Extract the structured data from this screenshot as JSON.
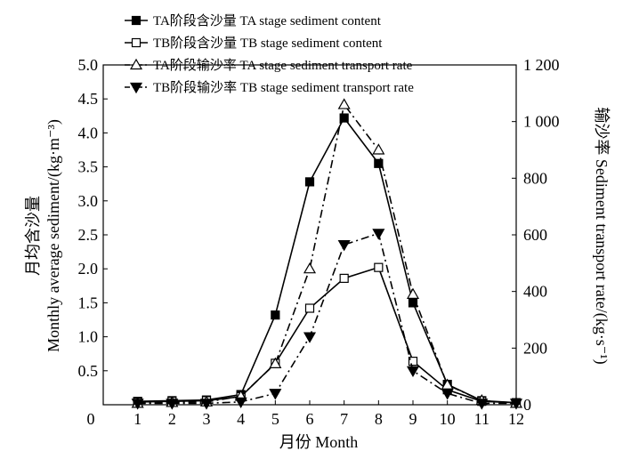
{
  "chart_data": {
    "type": "line",
    "x": [
      1,
      2,
      3,
      4,
      5,
      6,
      7,
      8,
      9,
      10,
      11,
      12
    ],
    "xlabel": "月份 Month",
    "xlim": [
      0,
      12
    ],
    "xticks": [
      "0",
      "1",
      "2",
      "3",
      "4",
      "5",
      "6",
      "7",
      "8",
      "9",
      "10",
      "11",
      "12"
    ],
    "ylabel_left_line1": "月均含沙量",
    "ylabel_left_line2": "Monthly average sediment/(kg·m⁻³)",
    "ylim_left": [
      0,
      5.0
    ],
    "yticks_left": [
      "0.5",
      "1.0",
      "1.5",
      "2.0",
      "2.5",
      "3.0",
      "3.5",
      "4.0",
      "4.5",
      "5.0"
    ],
    "ylabel_right": "输沙率 Sediment transport rate/(kg·s⁻¹)",
    "ylim_right": [
      0,
      1200
    ],
    "yticks_right": [
      "0",
      "200",
      "400",
      "600",
      "800",
      "1 000",
      "1 200"
    ],
    "legend_position": "top",
    "series": [
      {
        "name": "TA阶段含沙量 TA stage sediment content",
        "axis": "left",
        "marker": "filled-square",
        "line": "solid",
        "values": [
          0.05,
          0.06,
          0.07,
          0.15,
          1.32,
          3.28,
          4.22,
          3.55,
          1.5,
          0.3,
          0.06,
          0.03
        ]
      },
      {
        "name": "TB阶段含沙量 TB stage sediment content",
        "axis": "left",
        "marker": "open-square",
        "line": "solid",
        "values": [
          0.04,
          0.05,
          0.06,
          0.12,
          0.61,
          1.42,
          1.86,
          2.02,
          0.64,
          0.22,
          0.05,
          0.03
        ]
      },
      {
        "name": "TA阶段输沙率 TA stage sediment transport rate",
        "axis": "right",
        "marker": "open-triangle-up",
        "line": "dashdot",
        "values": [
          5,
          8,
          10,
          30,
          145,
          480,
          1060,
          900,
          390,
          70,
          15,
          5
        ]
      },
      {
        "name": "TB阶段输沙率 TB stage sediment transport rate",
        "axis": "right",
        "marker": "filled-triangle-down",
        "line": "dashdot",
        "values": [
          5,
          5,
          5,
          10,
          40,
          240,
          565,
          605,
          120,
          40,
          5,
          5
        ]
      }
    ]
  }
}
